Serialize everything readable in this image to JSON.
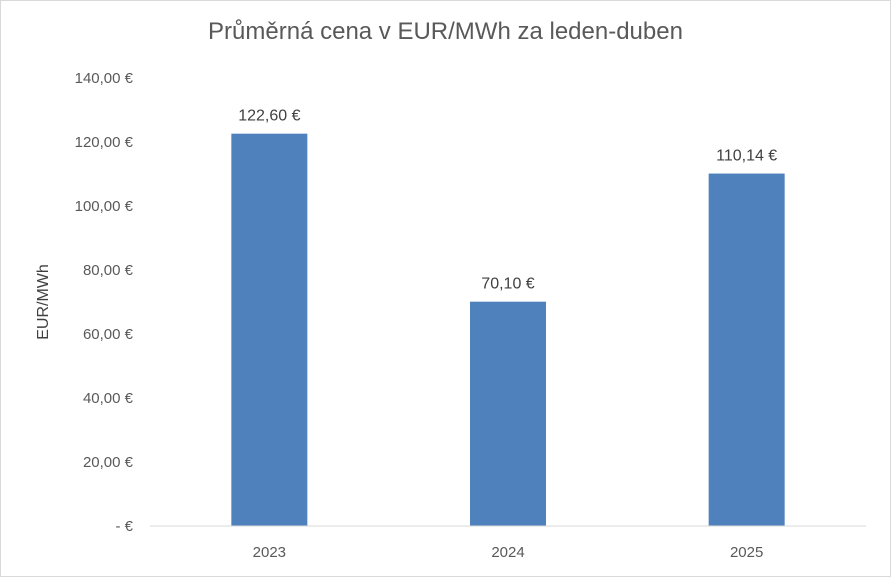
{
  "chart_data": {
    "type": "bar",
    "title": "Průměrná cena v EUR/MWh za leden-duben",
    "xlabel": "",
    "ylabel": "EUR/MWh",
    "categories": [
      "2023",
      "2024",
      "2025"
    ],
    "values": [
      122.6,
      70.1,
      110.14
    ],
    "data_labels": [
      "122,60 €",
      "70,10 €",
      "110,14 €"
    ],
    "ylim": [
      0,
      140
    ],
    "y_ticks": [
      0,
      20,
      40,
      60,
      80,
      100,
      120,
      140
    ],
    "y_tick_labels": [
      "-  €",
      "20,00 €",
      "40,00 €",
      "60,00 €",
      "80,00 €",
      "100,00 €",
      "120,00 €",
      "140,00 €"
    ],
    "bar_color": "#4f81bd",
    "grid": false,
    "legend": "none"
  }
}
